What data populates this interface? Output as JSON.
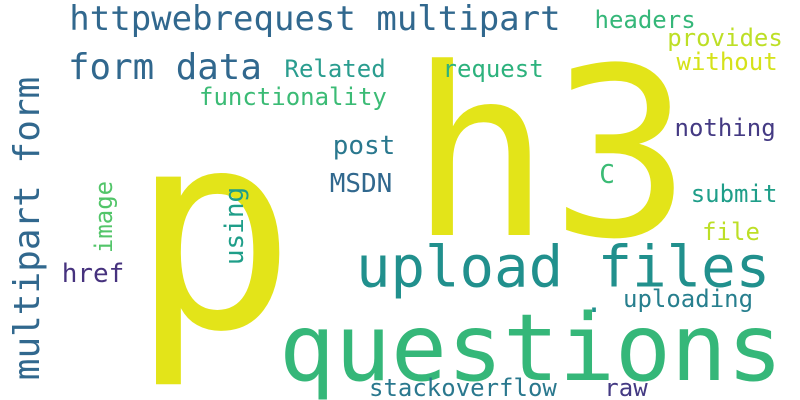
{
  "words": [
    {
      "key": "p",
      "text": "p",
      "color": "#e3e419"
    },
    {
      "key": "h3",
      "text": "h3",
      "color": "#e3e419"
    },
    {
      "key": "questions",
      "text": "questions",
      "color": "#35b779"
    },
    {
      "key": "upload_files",
      "text": "upload files",
      "color": "#21908d"
    },
    {
      "key": "httpwebrequest_multipart",
      "text": "httpwebrequest multipart",
      "color": "#31688e"
    },
    {
      "key": "form_data",
      "text": "form data",
      "color": "#31688e"
    },
    {
      "key": "multipart_form",
      "text": "multipart form",
      "color": "#31688e"
    },
    {
      "key": "headers",
      "text": "headers",
      "color": "#35b779"
    },
    {
      "key": "provides",
      "text": "provides",
      "color": "#bddf26"
    },
    {
      "key": "without",
      "text": "without",
      "color": "#d5e21a"
    },
    {
      "key": "related",
      "text": "Related",
      "color": "#2a9d8f"
    },
    {
      "key": "request",
      "text": "request",
      "color": "#2db27d"
    },
    {
      "key": "functionality",
      "text": "functionality",
      "color": "#3bbb75"
    },
    {
      "key": "nothing",
      "text": "nothing",
      "color": "#443a83"
    },
    {
      "key": "post",
      "text": "post",
      "color": "#2a788e"
    },
    {
      "key": "msdn",
      "text": "MSDN",
      "color": "#31688e"
    },
    {
      "key": "c",
      "text": "C",
      "color": "#3bbb75"
    },
    {
      "key": "submit",
      "text": "submit",
      "color": "#1f9e89"
    },
    {
      "key": "file",
      "text": "file",
      "color": "#bddf26"
    },
    {
      "key": "image",
      "text": "image",
      "color": "#52c569"
    },
    {
      "key": "using",
      "text": "using",
      "color": "#1f9e89"
    },
    {
      "key": "href",
      "text": "href",
      "color": "#46327e"
    },
    {
      "key": "uploading",
      "text": "uploading",
      "color": "#277f8e"
    },
    {
      "key": "stackoverflow",
      "text": "stackoverflow",
      "color": "#2a788e"
    },
    {
      "key": "raw",
      "text": "raw",
      "color": "#443a83"
    },
    {
      "key": "dot",
      "text": ".",
      "color": "#21908d"
    }
  ]
}
